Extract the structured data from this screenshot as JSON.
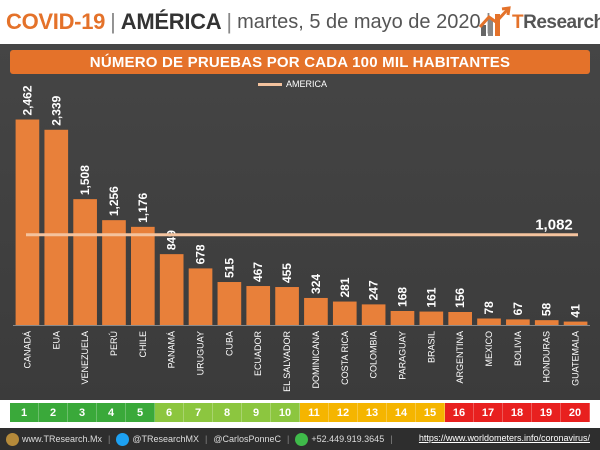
{
  "header": {
    "topic": "COVID-19",
    "separator": "|",
    "region": "AMÉRICA",
    "date": "martes, 5 de mayo de 2020",
    "logo_text_a": "T",
    "logo_text_b": "Research"
  },
  "colors": {
    "accent": "#e4722a",
    "bar": "#e8803a",
    "reference_line": "#f4c39e",
    "rank_green": "#3ba935",
    "rank_yellow": "#f5b800",
    "rank_red": "#e02020"
  },
  "chart_data": {
    "type": "bar",
    "title": "NÚMERO DE PRUEBAS POR CADA 100 MIL HABITANTES",
    "categories": [
      "CANADÁ",
      "EUA",
      "VENEZUELA",
      "PERÚ",
      "CHILE",
      "PANAMÁ",
      "URUGUAY",
      "CUBA",
      "ECUADOR",
      "EL SALVADOR",
      "DOMINICANA",
      "COSTA RICA",
      "COLOMBIA",
      "PARAGUAY",
      "BRASIL",
      "ARGENTINA",
      "MEXICO",
      "BOLIVIA",
      "HONDURAS",
      "GUATEMALA"
    ],
    "values": [
      2462,
      2339,
      1508,
      1256,
      1176,
      849,
      678,
      515,
      467,
      455,
      324,
      281,
      247,
      168,
      161,
      156,
      78,
      67,
      58,
      41
    ],
    "value_labels": [
      "2,462",
      "2,339",
      "1,508",
      "1,256",
      "1,176",
      "849",
      "678",
      "515",
      "467",
      "455",
      "324",
      "281",
      "247",
      "168",
      "161",
      "156",
      "78",
      "67",
      "58",
      "41"
    ],
    "reference": {
      "name": "AMERICA",
      "value": 1082,
      "label": "1,082"
    },
    "ylim": [
      0,
      2600
    ],
    "grid": false,
    "legend": "top-center",
    "xlabel": "",
    "ylabel": ""
  },
  "ranks": [
    {
      "n": "1",
      "group": "green"
    },
    {
      "n": "2",
      "group": "green"
    },
    {
      "n": "3",
      "group": "green"
    },
    {
      "n": "4",
      "group": "green"
    },
    {
      "n": "5",
      "group": "green"
    },
    {
      "n": "6",
      "group": "lightgreen"
    },
    {
      "n": "7",
      "group": "lightgreen"
    },
    {
      "n": "8",
      "group": "lightgreen"
    },
    {
      "n": "9",
      "group": "lightgreen"
    },
    {
      "n": "10",
      "group": "lightgreen"
    },
    {
      "n": "11",
      "group": "yellow"
    },
    {
      "n": "12",
      "group": "yellow"
    },
    {
      "n": "13",
      "group": "yellow"
    },
    {
      "n": "14",
      "group": "yellow"
    },
    {
      "n": "15",
      "group": "yellow"
    },
    {
      "n": "16",
      "group": "red"
    },
    {
      "n": "17",
      "group": "red"
    },
    {
      "n": "18",
      "group": "red"
    },
    {
      "n": "19",
      "group": "red"
    },
    {
      "n": "20",
      "group": "red"
    }
  ],
  "rank_colors": {
    "green": "#3aa93a",
    "lightgreen": "#8cc63f",
    "yellow": "#f5b500",
    "red": "#e8201f"
  },
  "footer": {
    "web": "www.TResearch.Mx",
    "twitter": "@TResearchMX",
    "twitter2": "@CarlosPonneC",
    "phone": "+52.449.919.3645",
    "sep": "|",
    "source": "https://www.worldometers.info/coronavirus/"
  }
}
